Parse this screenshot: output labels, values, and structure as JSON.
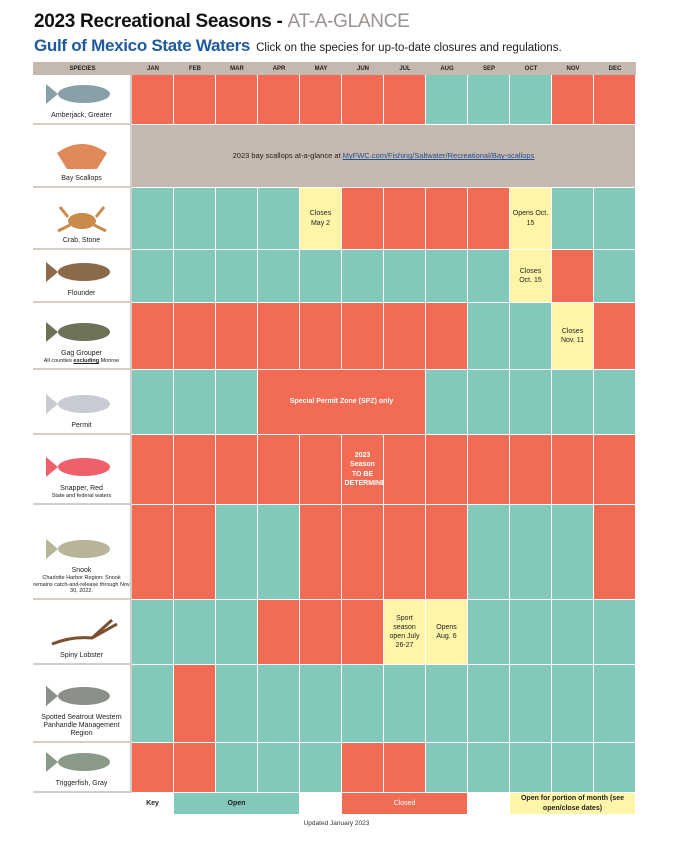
{
  "header": {
    "title_main": "2023 Recreational Seasons - ",
    "title_accent": "AT-A-GLANCE",
    "subtitle": "Gulf of Mexico State Waters",
    "instruction": "Click on the species for up-to-date closures and regulations."
  },
  "columns": {
    "species_label": "SPECIES",
    "months": [
      "JAN",
      "FEB",
      "MAR",
      "APR",
      "MAY",
      "JUN",
      "JUL",
      "AUG",
      "SEP",
      "OCT",
      "NOV",
      "DEC"
    ]
  },
  "status_colors": {
    "closed": "#f26c55",
    "open": "#82c8bb",
    "partial": "#fff5a8",
    "info": "#c5b8ae"
  },
  "rows": [
    {
      "name": "Amberjack, Greater",
      "icon": "amberjack-icon",
      "fish": "#8aa0a8",
      "cells": [
        {
          "s": "C"
        },
        {
          "s": "C"
        },
        {
          "s": "C"
        },
        {
          "s": "C"
        },
        {
          "s": "C"
        },
        {
          "s": "C"
        },
        {
          "s": "C"
        },
        {
          "s": "O"
        },
        {
          "s": "O"
        },
        {
          "s": "O"
        },
        {
          "s": "C"
        },
        {
          "s": "C"
        }
      ]
    },
    {
      "name": "Bay Scallops",
      "icon": "scallop-icon",
      "fish": "#e08a5a",
      "cells": [
        {
          "s": "T",
          "span": 12,
          "text": "2023 bay scallops at-a-glance at ",
          "link": "MyFWC.com/Fishing/Saltwater/Recreational/Bay-scallops"
        }
      ]
    },
    {
      "name": "Crab, Stone",
      "icon": "crab-icon",
      "fish": "#c98a4a",
      "cells": [
        {
          "s": "O"
        },
        {
          "s": "O"
        },
        {
          "s": "O"
        },
        {
          "s": "O"
        },
        {
          "s": "P",
          "text": "Closes May 2"
        },
        {
          "s": "C"
        },
        {
          "s": "C"
        },
        {
          "s": "C"
        },
        {
          "s": "C"
        },
        {
          "s": "P",
          "text": "Opens Oct. 15"
        },
        {
          "s": "O"
        },
        {
          "s": "O"
        }
      ]
    },
    {
      "name": "Flounder",
      "icon": "flounder-icon",
      "fish": "#8a6a48",
      "cells": [
        {
          "s": "O"
        },
        {
          "s": "O"
        },
        {
          "s": "O"
        },
        {
          "s": "O"
        },
        {
          "s": "O"
        },
        {
          "s": "O"
        },
        {
          "s": "O"
        },
        {
          "s": "O"
        },
        {
          "s": "O"
        },
        {
          "s": "P",
          "text": "Closes Oct. 15"
        },
        {
          "s": "C"
        },
        {
          "s": "O"
        }
      ]
    },
    {
      "name": "Gag Grouper",
      "note_parts": [
        "All counties ",
        "excluding",
        " Monroe"
      ],
      "icon": "gag-grouper-icon",
      "fish": "#6f7258",
      "cells": [
        {
          "s": "C"
        },
        {
          "s": "C"
        },
        {
          "s": "C"
        },
        {
          "s": "C"
        },
        {
          "s": "C"
        },
        {
          "s": "C"
        },
        {
          "s": "C"
        },
        {
          "s": "C"
        },
        {
          "s": "O"
        },
        {
          "s": "O"
        },
        {
          "s": "P",
          "text": "Closes Nov. 11"
        },
        {
          "s": "C"
        }
      ]
    },
    {
      "name": "Permit",
      "icon": "permit-icon",
      "fish": "#c8ccd2",
      "cells": [
        {
          "s": "O"
        },
        {
          "s": "O"
        },
        {
          "s": "O"
        },
        {
          "s": "C",
          "span": 4,
          "text": "Special Permit Zone (SPZ) only"
        },
        {
          "s": "O"
        },
        {
          "s": "O"
        },
        {
          "s": "O"
        },
        {
          "s": "O"
        },
        {
          "s": "O"
        }
      ]
    },
    {
      "name": "Snapper, Red",
      "note": "State and federal waters",
      "icon": "red-snapper-icon",
      "fish": "#f0606a",
      "cells": [
        {
          "s": "C"
        },
        {
          "s": "C"
        },
        {
          "s": "C"
        },
        {
          "s": "C"
        },
        {
          "s": "C"
        },
        {
          "s": "C",
          "text": "2023 Season TO BE DETERMINED"
        },
        {
          "s": "C"
        },
        {
          "s": "C"
        },
        {
          "s": "C"
        },
        {
          "s": "C"
        },
        {
          "s": "C"
        },
        {
          "s": "C"
        }
      ]
    },
    {
      "name": "Snook",
      "note": "Charlotte Harbor Region: Snook remains catch-and-release through Nov 30, 2022.",
      "icon": "snook-icon",
      "fish": "#b8b49a",
      "cells": [
        {
          "s": "C"
        },
        {
          "s": "C"
        },
        {
          "s": "O"
        },
        {
          "s": "O"
        },
        {
          "s": "C"
        },
        {
          "s": "C"
        },
        {
          "s": "C"
        },
        {
          "s": "C"
        },
        {
          "s": "O"
        },
        {
          "s": "O"
        },
        {
          "s": "O"
        },
        {
          "s": "C"
        }
      ]
    },
    {
      "name": "Spiny Lobster",
      "icon": "spiny-lobster-icon",
      "fish": "#7a5030",
      "cells": [
        {
          "s": "O"
        },
        {
          "s": "O"
        },
        {
          "s": "O"
        },
        {
          "s": "C"
        },
        {
          "s": "C"
        },
        {
          "s": "C"
        },
        {
          "s": "P",
          "text": "Sport season open July 26-27"
        },
        {
          "s": "P",
          "text": "Opens Aug. 6"
        },
        {
          "s": "O"
        },
        {
          "s": "O"
        },
        {
          "s": "O"
        },
        {
          "s": "O"
        }
      ]
    },
    {
      "name": "Spotted Seatrout Western Panhandle Management Region",
      "icon": "spotted-seatrout-icon",
      "fish": "#8a9088",
      "cells": [
        {
          "s": "O"
        },
        {
          "s": "C"
        },
        {
          "s": "O"
        },
        {
          "s": "O"
        },
        {
          "s": "O"
        },
        {
          "s": "O"
        },
        {
          "s": "O"
        },
        {
          "s": "O"
        },
        {
          "s": "O"
        },
        {
          "s": "O"
        },
        {
          "s": "O"
        },
        {
          "s": "O"
        }
      ]
    },
    {
      "name": "Triggerfish, Gray",
      "icon": "triggerfish-icon",
      "fish": "#8a9a88",
      "cells": [
        {
          "s": "C"
        },
        {
          "s": "C"
        },
        {
          "s": "O"
        },
        {
          "s": "O"
        },
        {
          "s": "O"
        },
        {
          "s": "C"
        },
        {
          "s": "C"
        },
        {
          "s": "O"
        },
        {
          "s": "O"
        },
        {
          "s": "O"
        },
        {
          "s": "O"
        },
        {
          "s": "O"
        }
      ]
    }
  ],
  "key": {
    "label": "Key",
    "open": "Open",
    "closed": "Closed",
    "partial": "Open for portion of month (see open/close dates)"
  },
  "footer": "Updated January 2023"
}
